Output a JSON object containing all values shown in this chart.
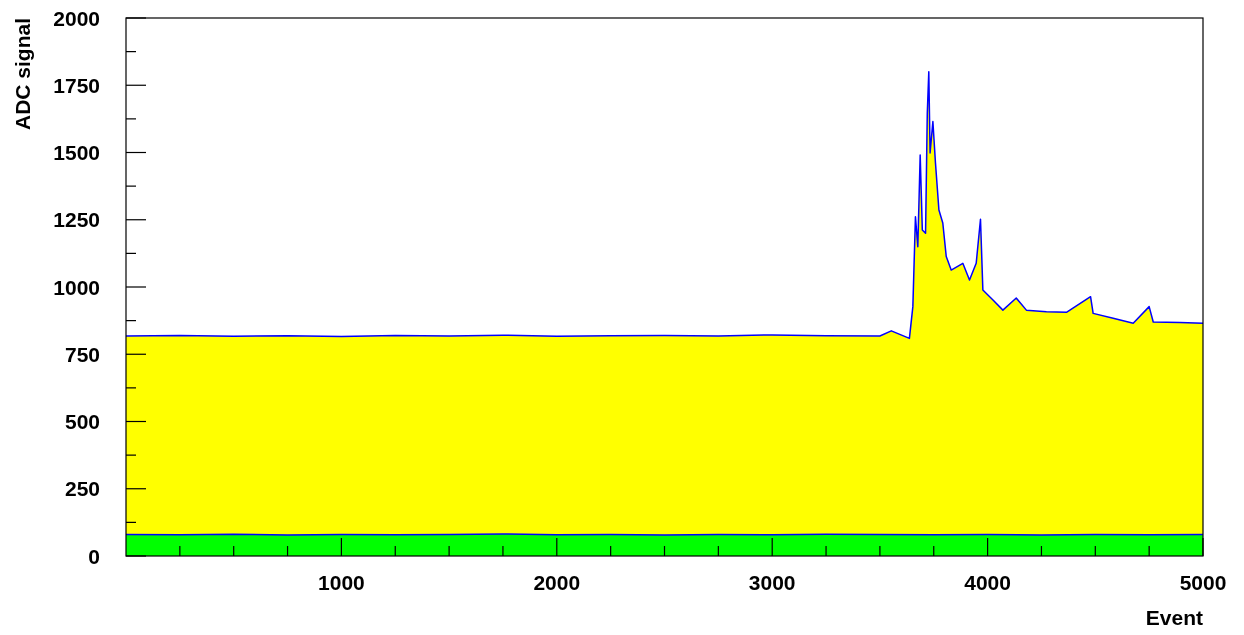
{
  "chart_data": {
    "type": "area",
    "xlabel": "Event",
    "ylabel": "ADC signal",
    "xlim": [
      0,
      5000
    ],
    "ylim": [
      0,
      2000
    ],
    "xticks": [
      {
        "value": 250,
        "label": null
      },
      {
        "value": 500,
        "label": null
      },
      {
        "value": 750,
        "label": null
      },
      1000,
      {
        "value": 1250,
        "label": null
      },
      {
        "value": 1500,
        "label": null
      },
      {
        "value": 1750,
        "label": null
      },
      2000,
      {
        "value": 2250,
        "label": null
      },
      {
        "value": 2500,
        "label": null
      },
      {
        "value": 2750,
        "label": null
      },
      3000,
      {
        "value": 3250,
        "label": null
      },
      {
        "value": 3500,
        "label": null
      },
      {
        "value": 3750,
        "label": null
      },
      4000,
      {
        "value": 4250,
        "label": null
      },
      {
        "value": 4500,
        "label": null
      },
      {
        "value": 4750,
        "label": null
      },
      5000
    ],
    "yticks": [
      0,
      {
        "value": 125,
        "label": null
      },
      250,
      {
        "value": 375,
        "label": null
      },
      500,
      {
        "value": 625,
        "label": null
      },
      750,
      {
        "value": 875,
        "label": null
      },
      1000,
      {
        "value": 1125,
        "label": null
      },
      1250,
      {
        "value": 1375,
        "label": null
      },
      1500,
      {
        "value": 1625,
        "label": null
      },
      1750,
      {
        "value": 1875,
        "label": null
      },
      2000
    ],
    "grid": false,
    "series": [
      {
        "color": "#ffff00",
        "x": [
          0,
          250,
          500,
          750,
          1000,
          1250,
          1500,
          1750,
          2000,
          2250,
          2500,
          2750,
          3000,
          3250,
          3500,
          3553,
          3637,
          3653,
          3665,
          3676,
          3687,
          3697,
          3712,
          3720,
          3727,
          3733,
          3746,
          3758,
          3774,
          3792,
          3808,
          3831,
          3885,
          3916,
          3947,
          3967,
          3978,
          4025,
          4071,
          4133,
          4180,
          4273,
          4366,
          4478,
          4490,
          4583,
          4676,
          4750,
          4769,
          4893,
          5000
        ],
        "values": [
          818,
          820,
          817,
          819,
          816,
          820,
          818,
          821,
          817,
          819,
          820,
          818,
          822,
          819,
          818,
          837,
          809,
          927,
          1261,
          1150,
          1491,
          1212,
          1200,
          1646,
          1800,
          1498,
          1615,
          1461,
          1286,
          1238,
          1113,
          1063,
          1088,
          1026,
          1088,
          1252,
          989,
          952,
          914,
          959,
          914,
          908,
          906,
          964,
          902,
          884,
          865,
          927,
          870,
          868,
          865
        ]
      },
      {
        "type": "line",
        "color": "#0000ff",
        "x": [
          0,
          250,
          500,
          750,
          1000,
          1250,
          1500,
          1750,
          2000,
          2250,
          2500,
          2750,
          3000,
          3250,
          3500,
          3553,
          3637,
          3653,
          3665,
          3676,
          3687,
          3697,
          3712,
          3720,
          3727,
          3733,
          3746,
          3758,
          3774,
          3792,
          3808,
          3831,
          3885,
          3916,
          3947,
          3967,
          3978,
          4025,
          4071,
          4133,
          4180,
          4273,
          4366,
          4478,
          4490,
          4583,
          4676,
          4750,
          4769,
          4893,
          5000
        ],
        "values": [
          818,
          820,
          817,
          819,
          816,
          820,
          818,
          821,
          817,
          819,
          820,
          818,
          822,
          819,
          818,
          837,
          809,
          927,
          1261,
          1150,
          1491,
          1212,
          1200,
          1646,
          1800,
          1498,
          1615,
          1461,
          1286,
          1238,
          1113,
          1063,
          1088,
          1026,
          1088,
          1252,
          989,
          952,
          914,
          959,
          914,
          908,
          906,
          964,
          902,
          884,
          865,
          927,
          870,
          868,
          865
        ]
      },
      {
        "color": "#00ff00",
        "x": [
          0,
          250,
          500,
          750,
          1000,
          1250,
          1500,
          1750,
          2000,
          2250,
          2500,
          2750,
          3000,
          3250,
          3500,
          3750,
          4000,
          4250,
          4500,
          4750,
          5000
        ],
        "values": [
          80,
          79,
          81,
          78,
          80,
          79,
          80,
          82,
          79,
          80,
          78,
          80,
          79,
          81,
          80,
          79,
          80,
          78,
          80,
          79,
          80
        ]
      },
      {
        "type": "line",
        "color": "#0000ff",
        "x": [
          0,
          250,
          500,
          750,
          1000,
          1250,
          1500,
          1750,
          2000,
          2250,
          2500,
          2750,
          3000,
          3250,
          3500,
          3750,
          4000,
          4250,
          4500,
          4750,
          5000
        ],
        "values": [
          80,
          79,
          81,
          78,
          80,
          79,
          80,
          82,
          79,
          80,
          78,
          80,
          79,
          81,
          80,
          79,
          80,
          78,
          80,
          79,
          80
        ]
      }
    ]
  }
}
